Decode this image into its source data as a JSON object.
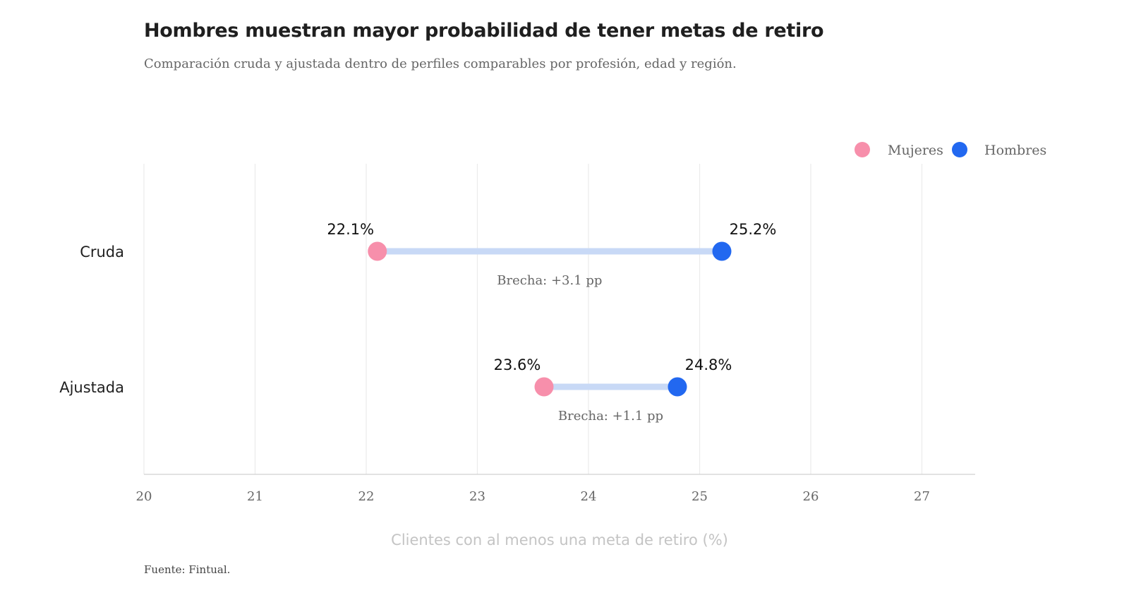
{
  "header": {
    "title": "Hombres muestran mayor probabilidad de tener metas de retiro",
    "subtitle": "Comparación cruda y ajustada dentro de perfiles comparables por profesión, edad y región."
  },
  "footer": {
    "source": "Fuente: Fintual."
  },
  "chart_data": {
    "type": "dumbbell",
    "title": "Hombres muestran mayor probabilidad de tener metas de retiro",
    "subtitle": "Comparación cruda y ajustada dentro de perfiles comparables por profesión, edad y región.",
    "xlabel": "Clientes con al menos una meta de retiro (%)",
    "ylabel": "",
    "xlim": [
      20,
      27.5
    ],
    "x_ticks": [
      20,
      21,
      22,
      23,
      24,
      25,
      26,
      27
    ],
    "grid": true,
    "legend_position": "top-right",
    "categories": [
      "Cruda",
      "Ajustada"
    ],
    "series": [
      {
        "name": "Mujeres",
        "color": "#f78fab",
        "values": [
          22.1,
          23.6
        ],
        "labels": [
          "22.1%",
          "23.6%"
        ]
      },
      {
        "name": "Hombres",
        "color": "#2268f0",
        "values": [
          25.2,
          24.8
        ],
        "labels": [
          "25.2%",
          "24.8%"
        ]
      }
    ],
    "connector_color": "#c8d9f6",
    "gap_labels": [
      "Brecha: +3.1 pp",
      "Brecha: +1.1 pp"
    ]
  }
}
